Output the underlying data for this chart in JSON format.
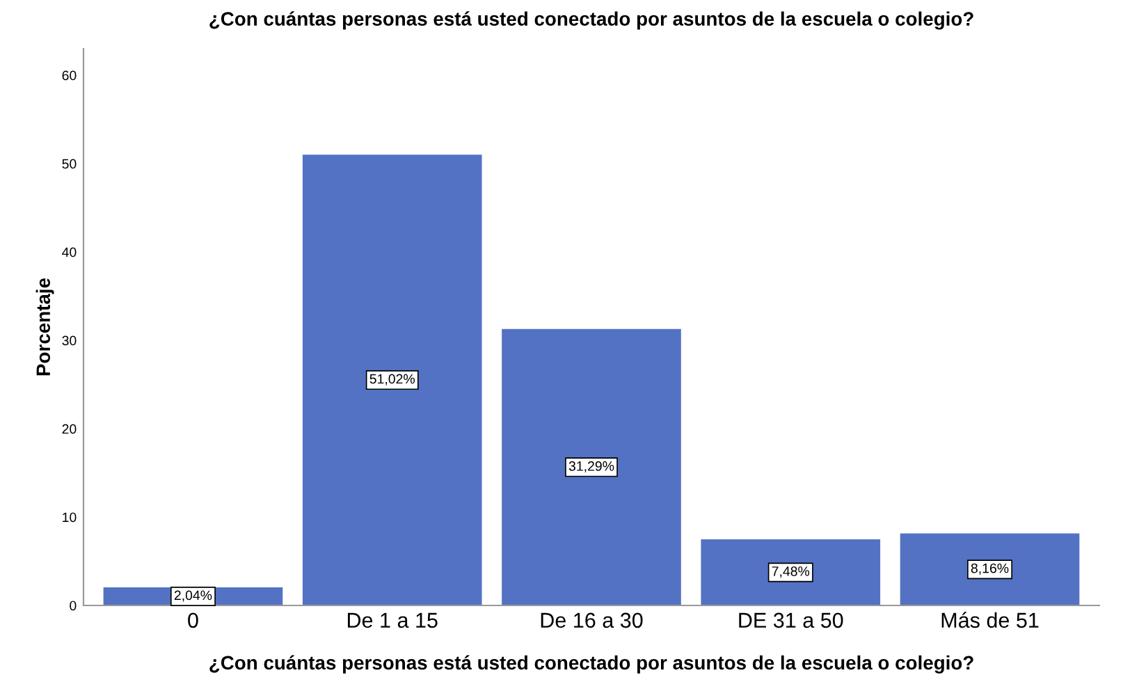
{
  "chart_data": {
    "type": "bar",
    "title": "¿Con cuántas personas está usted conectado por asuntos de la escuela o colegio?",
    "xlabel": "¿Con cuántas personas está usted conectado por asuntos de la escuela o colegio?",
    "ylabel": "Porcentaje",
    "categories": [
      "0",
      "De 1 a 15",
      "De 16 a 30",
      "DE 31 a 50",
      "Más de 51"
    ],
    "values": [
      2.04,
      51.02,
      31.29,
      7.48,
      8.16
    ],
    "value_labels": [
      "2,04%",
      "51,02%",
      "31,29%",
      "7,48%",
      "8,16%"
    ],
    "color": "#5472c4",
    "ylim": [
      0,
      63
    ],
    "yticks": [
      0,
      10,
      20,
      30,
      40,
      50,
      60
    ],
    "grid": false
  }
}
